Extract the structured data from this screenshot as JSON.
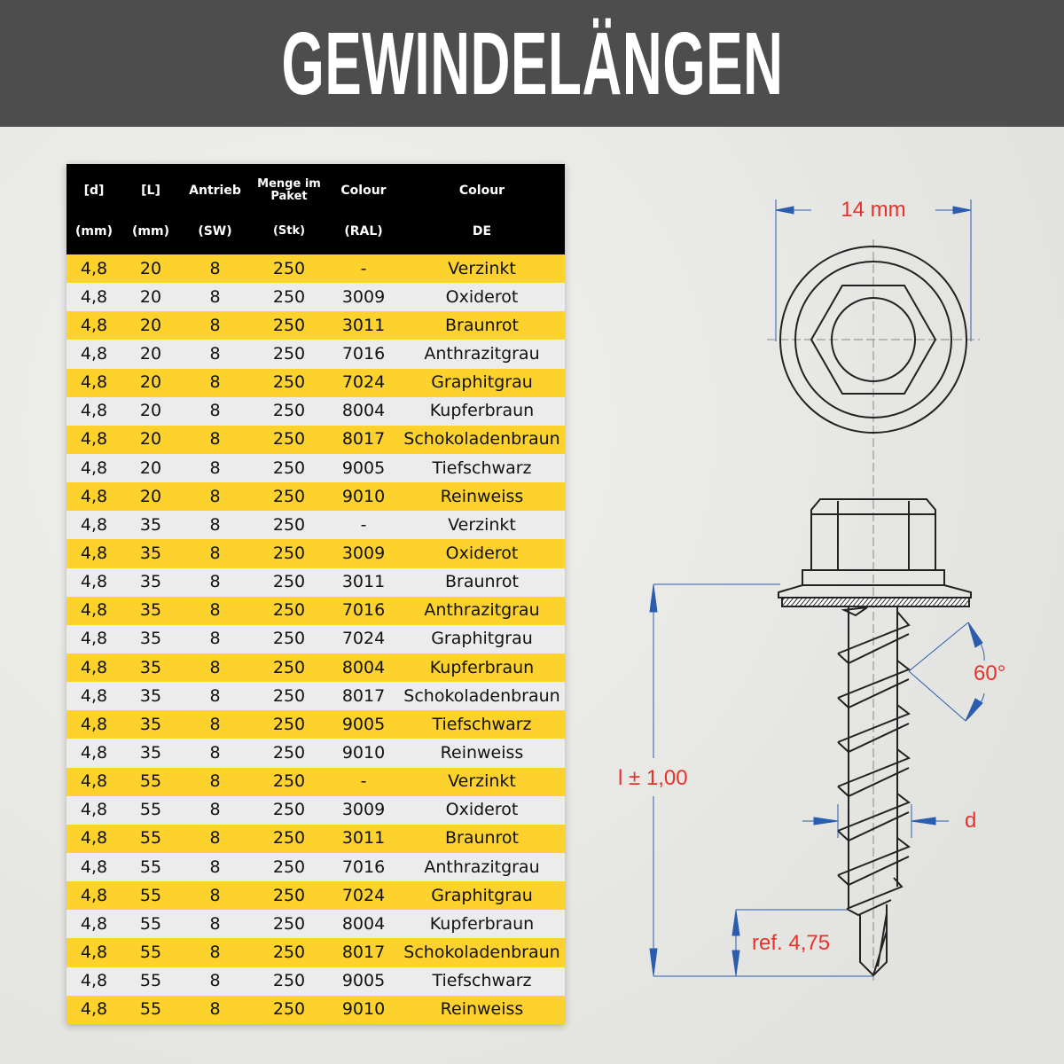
{
  "title": "GEWINDELÄNGEN",
  "table": {
    "headers_top": [
      "[d]",
      "[L]",
      "Antrieb",
      "Menge im Paket",
      "Colour",
      "Colour"
    ],
    "headers_bottom": [
      "(mm)",
      "(mm)",
      "(SW)",
      "(Stk)",
      "(RAL)",
      "DE"
    ],
    "rows": [
      [
        "4,8",
        "20",
        "8",
        "250",
        "-",
        "Verzinkt"
      ],
      [
        "4,8",
        "20",
        "8",
        "250",
        "3009",
        "Oxiderot"
      ],
      [
        "4,8",
        "20",
        "8",
        "250",
        "3011",
        "Braunrot"
      ],
      [
        "4,8",
        "20",
        "8",
        "250",
        "7016",
        "Anthrazitgrau"
      ],
      [
        "4,8",
        "20",
        "8",
        "250",
        "7024",
        "Graphitgrau"
      ],
      [
        "4,8",
        "20",
        "8",
        "250",
        "8004",
        "Kupferbraun"
      ],
      [
        "4,8",
        "20",
        "8",
        "250",
        "8017",
        "Schokoladenbraun"
      ],
      [
        "4,8",
        "20",
        "8",
        "250",
        "9005",
        "Tiefschwarz"
      ],
      [
        "4,8",
        "20",
        "8",
        "250",
        "9010",
        "Reinweiss"
      ],
      [
        "4,8",
        "35",
        "8",
        "250",
        "-",
        "Verzinkt"
      ],
      [
        "4,8",
        "35",
        "8",
        "250",
        "3009",
        "Oxiderot"
      ],
      [
        "4,8",
        "35",
        "8",
        "250",
        "3011",
        "Braunrot"
      ],
      [
        "4,8",
        "35",
        "8",
        "250",
        "7016",
        "Anthrazitgrau"
      ],
      [
        "4,8",
        "35",
        "8",
        "250",
        "7024",
        "Graphitgrau"
      ],
      [
        "4,8",
        "35",
        "8",
        "250",
        "8004",
        "Kupferbraun"
      ],
      [
        "4,8",
        "35",
        "8",
        "250",
        "8017",
        "Schokoladenbraun"
      ],
      [
        "4,8",
        "35",
        "8",
        "250",
        "9005",
        "Tiefschwarz"
      ],
      [
        "4,8",
        "35",
        "8",
        "250",
        "9010",
        "Reinweiss"
      ],
      [
        "4,8",
        "55",
        "8",
        "250",
        "-",
        "Verzinkt"
      ],
      [
        "4,8",
        "55",
        "8",
        "250",
        "3009",
        "Oxiderot"
      ],
      [
        "4,8",
        "55",
        "8",
        "250",
        "3011",
        "Braunrot"
      ],
      [
        "4,8",
        "55",
        "8",
        "250",
        "7016",
        "Anthrazitgrau"
      ],
      [
        "4,8",
        "55",
        "8",
        "250",
        "7024",
        "Graphitgrau"
      ],
      [
        "4,8",
        "55",
        "8",
        "250",
        "8004",
        "Kupferbraun"
      ],
      [
        "4,8",
        "55",
        "8",
        "250",
        "8017",
        "Schokoladenbraun"
      ],
      [
        "4,8",
        "55",
        "8",
        "250",
        "9005",
        "Tiefschwarz"
      ],
      [
        "4,8",
        "55",
        "8",
        "250",
        "9010",
        "Reinweiss"
      ]
    ]
  },
  "drawing": {
    "head_width": "14 mm",
    "length": "l ± 1,00",
    "angle": "60°",
    "diameter": "d",
    "tip": "ref. 4,75"
  },
  "colors": {
    "topbar": "#4d4d4d",
    "row_highlight": "#fdd22c",
    "row_alt": "#ececec",
    "dimension_line": "#2a5db0",
    "dimension_text": "#e8312a"
  }
}
